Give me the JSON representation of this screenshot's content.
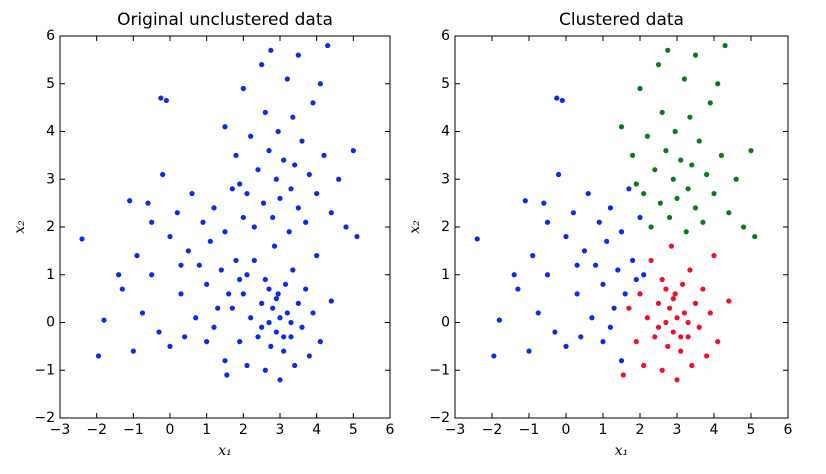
{
  "chart_data": [
    {
      "type": "scatter",
      "title": "Original unclustered data",
      "xlabel": "x₁",
      "ylabel": "x₂",
      "xlim": [
        -3,
        6
      ],
      "ylim": [
        -2,
        6
      ],
      "xticks": [
        {
          "value": -3,
          "label": "−3"
        },
        {
          "value": -2,
          "label": "−2"
        },
        {
          "value": -1,
          "label": "−1"
        },
        0,
        1,
        2,
        3,
        4,
        5,
        6
      ],
      "yticks": [
        {
          "value": -2,
          "label": "−2"
        },
        {
          "value": -1,
          "label": "−1"
        },
        0,
        1,
        2,
        3,
        4,
        5,
        6
      ],
      "series": [
        {
          "color": "#0a2af0",
          "x": [
            -2.4,
            -1.95,
            -1.8,
            -1.3,
            -1.0,
            -1.1,
            -0.9,
            -0.75,
            -0.6,
            -0.5,
            -0.3,
            -0.25,
            -0.1,
            -0.2,
            0.0,
            0.0,
            0.2,
            0.3,
            0.4,
            0.5,
            0.6,
            0.7,
            0.8,
            0.9,
            1.0,
            1.0,
            1.1,
            1.2,
            1.3,
            1.4,
            1.5,
            1.5,
            1.6,
            1.7,
            1.8,
            1.9,
            2.0,
            2.1,
            -0.5,
            0.3,
            1.2,
            -1.4,
            1.55,
            1.7,
            1.9,
            2.0,
            2.1,
            2.2,
            2.3,
            2.4,
            2.5,
            2.6,
            2.6,
            2.7,
            2.75,
            2.8,
            2.85,
            2.9,
            2.95,
            3.0,
            3.0,
            3.1,
            3.15,
            3.2,
            3.3,
            3.35,
            3.4,
            3.5,
            3.6,
            3.7,
            3.8,
            3.9,
            4.0,
            4.1,
            4.4,
            2.5,
            2.9,
            3.3,
            2.7,
            3.1,
            1.5,
            1.8,
            2.0,
            2.1,
            2.2,
            2.3,
            2.4,
            2.5,
            2.55,
            2.6,
            2.7,
            2.75,
            2.8,
            2.9,
            2.95,
            3.0,
            3.1,
            3.2,
            3.25,
            3.3,
            3.35,
            3.4,
            3.5,
            3.5,
            3.6,
            3.7,
            3.8,
            3.9,
            4.0,
            4.1,
            4.2,
            4.3,
            4.4,
            4.6,
            4.8,
            5.0,
            5.1,
            1.9
          ],
          "y": [
            1.75,
            -0.7,
            0.05,
            0.7,
            -0.6,
            2.55,
            1.4,
            0.2,
            2.5,
            1.0,
            -0.2,
            4.7,
            4.65,
            3.1,
            1.8,
            -0.5,
            2.3,
            0.6,
            -0.3,
            1.5,
            2.7,
            0.1,
            1.2,
            2.1,
            -0.4,
            0.8,
            1.7,
            2.4,
            0.3,
            1.1,
            -0.8,
            1.9,
            0.6,
            2.8,
            1.3,
            0.9,
            2.2,
            1.0,
            2.1,
            1.2,
            -0.1,
            1.0,
            -1.1,
            0.3,
            -0.4,
            0.6,
            -0.9,
            0.1,
            1.3,
            -0.3,
            0.4,
            -1.0,
            0.9,
            0.0,
            -0.5,
            0.3,
            1.6,
            -0.2,
            0.6,
            -1.2,
            0.1,
            -0.6,
            0.8,
            0.2,
            -0.3,
            1.1,
            -0.9,
            0.4,
            -0.1,
            0.7,
            -0.7,
            0.2,
            1.4,
            -0.4,
            0.45,
            -0.1,
            0.5,
            0.0,
            0.7,
            -0.3,
            4.1,
            3.5,
            4.9,
            2.7,
            3.9,
            2.0,
            3.2,
            5.4,
            2.5,
            4.4,
            3.6,
            5.7,
            2.2,
            3.0,
            4.0,
            2.6,
            3.4,
            5.1,
            1.9,
            2.8,
            4.3,
            3.3,
            5.6,
            2.4,
            3.8,
            2.1,
            3.1,
            4.6,
            2.7,
            5.0,
            3.5,
            5.8,
            2.3,
            3.0,
            2.0,
            3.6,
            1.8,
            2.9
          ]
        }
      ]
    },
    {
      "type": "scatter",
      "title": "Clustered data",
      "xlabel": "x₁",
      "ylabel": "x₂",
      "xlim": [
        -3,
        6
      ],
      "ylim": [
        -2,
        6
      ],
      "xticks": [
        {
          "value": -3,
          "label": "−3"
        },
        {
          "value": -2,
          "label": "−2"
        },
        {
          "value": -1,
          "label": "−1"
        },
        0,
        1,
        2,
        3,
        4,
        5,
        6
      ],
      "yticks": [
        {
          "value": -2,
          "label": "−2"
        },
        {
          "value": -1,
          "label": "−1"
        },
        0,
        1,
        2,
        3,
        4,
        5,
        6
      ],
      "series": [
        {
          "color": "#0a2af0",
          "x": [
            -2.4,
            -1.95,
            -1.8,
            -1.3,
            -1.0,
            -1.1,
            -0.9,
            -0.75,
            -0.6,
            -0.5,
            -0.3,
            -0.25,
            -0.1,
            -0.2,
            0.0,
            0.0,
            0.2,
            0.3,
            0.4,
            0.5,
            0.6,
            0.7,
            0.8,
            0.9,
            1.0,
            1.0,
            1.1,
            1.2,
            1.3,
            1.4,
            1.5,
            1.5,
            1.6,
            1.7,
            1.8,
            1.9,
            2.0,
            2.1,
            -0.5,
            0.3,
            1.2,
            -1.4
          ],
          "y": [
            1.75,
            -0.7,
            0.05,
            0.7,
            -0.6,
            2.55,
            1.4,
            0.2,
            2.5,
            1.0,
            -0.2,
            4.7,
            4.65,
            3.1,
            1.8,
            -0.5,
            2.3,
            0.6,
            -0.3,
            1.5,
            2.7,
            0.1,
            1.2,
            2.1,
            -0.4,
            0.8,
            1.7,
            2.4,
            0.3,
            1.1,
            -0.8,
            1.9,
            0.6,
            2.8,
            1.3,
            0.9,
            2.2,
            1.0,
            2.1,
            1.2,
            -0.1,
            1.0
          ]
        },
        {
          "color": "#f0102c",
          "x": [
            1.55,
            1.7,
            1.9,
            2.0,
            2.1,
            2.2,
            2.3,
            2.4,
            2.5,
            2.6,
            2.6,
            2.7,
            2.75,
            2.8,
            2.85,
            2.9,
            2.95,
            3.0,
            3.0,
            3.1,
            3.15,
            3.2,
            3.3,
            3.35,
            3.4,
            3.5,
            3.6,
            3.7,
            3.8,
            3.9,
            4.0,
            4.1,
            4.4,
            2.5,
            2.9,
            3.3,
            2.7,
            3.1
          ],
          "y": [
            -1.1,
            0.3,
            -0.4,
            0.6,
            -0.9,
            0.1,
            1.3,
            -0.3,
            0.4,
            -1.0,
            0.9,
            0.0,
            -0.5,
            0.3,
            1.6,
            -0.2,
            0.6,
            -1.2,
            0.1,
            -0.6,
            0.8,
            0.2,
            -0.3,
            1.1,
            -0.9,
            0.4,
            -0.1,
            0.7,
            -0.7,
            0.2,
            1.4,
            -0.4,
            0.45,
            -0.1,
            0.5,
            0.0,
            0.7,
            -0.3
          ]
        },
        {
          "color": "#0a7a1e",
          "x": [
            1.5,
            1.8,
            2.0,
            2.1,
            2.2,
            2.3,
            2.4,
            2.5,
            2.55,
            2.6,
            2.7,
            2.75,
            2.8,
            2.9,
            2.95,
            3.0,
            3.1,
            3.2,
            3.25,
            3.3,
            3.35,
            3.4,
            3.5,
            3.5,
            3.6,
            3.7,
            3.8,
            3.9,
            4.0,
            4.1,
            4.2,
            4.3,
            4.4,
            4.6,
            4.8,
            5.0,
            5.1,
            1.9
          ],
          "y": [
            4.1,
            3.5,
            4.9,
            2.7,
            3.9,
            2.0,
            3.2,
            5.4,
            2.5,
            4.4,
            3.6,
            5.7,
            2.2,
            3.0,
            4.0,
            2.6,
            3.4,
            5.1,
            1.9,
            2.8,
            4.3,
            3.3,
            5.6,
            2.4,
            3.8,
            2.1,
            3.1,
            4.6,
            2.7,
            5.0,
            3.5,
            5.8,
            2.3,
            3.0,
            2.0,
            3.6,
            1.8,
            2.9
          ]
        }
      ]
    }
  ]
}
